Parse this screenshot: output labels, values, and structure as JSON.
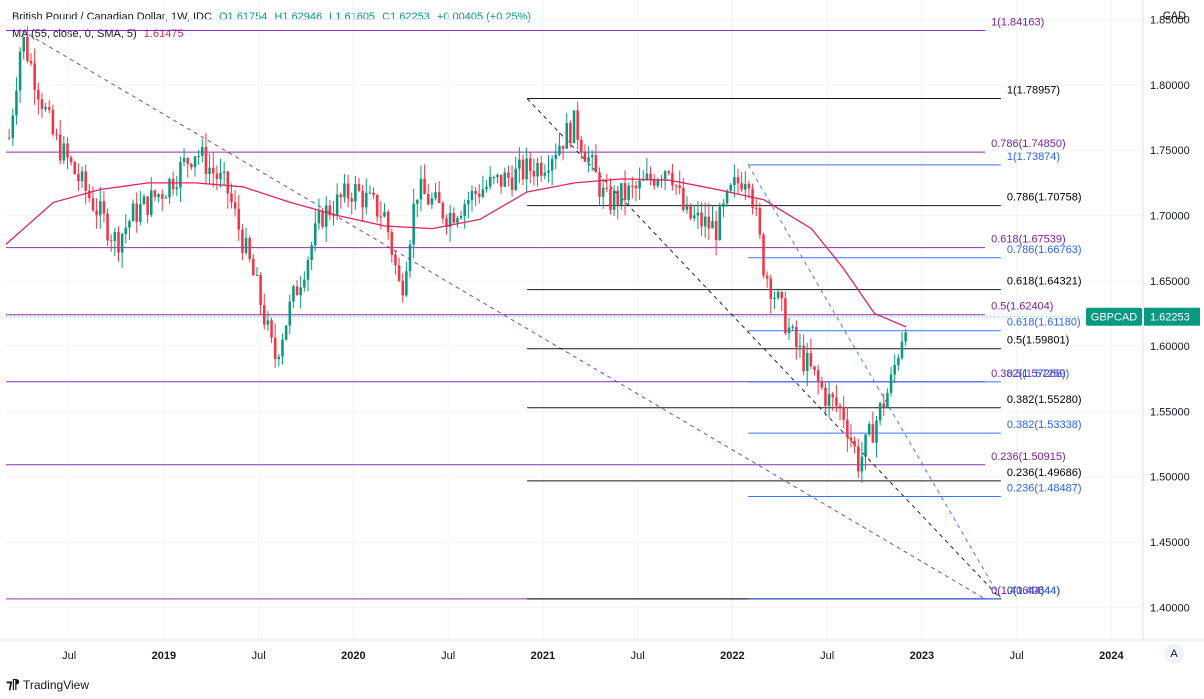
{
  "header": {
    "symbol_line": "British Pound / Canadian Dollar, 1W, IDC",
    "open": "O1.61754",
    "high": "H1.62946",
    "low": "L1.61605",
    "close": "C1.62253",
    "change": "+0.00405 (+0.25%)",
    "ma_label": "MA (55, close, 0, SMA, 5)",
    "ma_value": "1.61475"
  },
  "axis_currency": "CAD",
  "price_tag": {
    "symbol": "GBPCAD",
    "value": "1.62253",
    "price": 1.62253
  },
  "footer": {
    "brand": "TradingView",
    "auto_button": "A"
  },
  "colors": {
    "up": "#089981",
    "down": "#f23645",
    "ma": "#e0245e",
    "fib_purple": "#7b1fa2",
    "fib_black": "#000000",
    "fib_blue": "#2962ff"
  },
  "chart_data": {
    "type": "candlestick",
    "ylim": [
      1.375,
      1.865
    ],
    "y_ticks": [
      1.4,
      1.45,
      1.5,
      1.55,
      1.6,
      1.65,
      1.7,
      1.75,
      1.8,
      1.85
    ],
    "y_tick_labels": [
      "1.40000",
      "1.45000",
      "1.50000",
      "1.55000",
      "1.60000",
      "1.65000",
      "1.70000",
      "1.75000",
      "1.80000",
      "1.85000"
    ],
    "x_range": [
      "2018-03",
      "2024-03"
    ],
    "x_ticks": [
      {
        "label": "Jul",
        "date": "2018-07"
      },
      {
        "label": "2019",
        "date": "2019-01"
      },
      {
        "label": "Jul",
        "date": "2019-07"
      },
      {
        "label": "2020",
        "date": "2020-01"
      },
      {
        "label": "Jul",
        "date": "2020-07"
      },
      {
        "label": "2021",
        "date": "2021-01"
      },
      {
        "label": "Jul",
        "date": "2021-07"
      },
      {
        "label": "2022",
        "date": "2022-01"
      },
      {
        "label": "Jul",
        "date": "2022-07"
      },
      {
        "label": "2023",
        "date": "2023-01"
      },
      {
        "label": "Jul",
        "date": "2023-07"
      },
      {
        "label": "2024",
        "date": "2024-01"
      }
    ],
    "price_anchors": [
      [
        "2018-03",
        1.74
      ],
      [
        "2018-04",
        1.838
      ],
      [
        "2018-06",
        1.76
      ],
      [
        "2018-08",
        1.72
      ],
      [
        "2018-10",
        1.68
      ],
      [
        "2018-11",
        1.7
      ],
      [
        "2019-01",
        1.72
      ],
      [
        "2019-03",
        1.75
      ],
      [
        "2019-05",
        1.72
      ],
      [
        "2019-07",
        1.64
      ],
      [
        "2019-08",
        1.59
      ],
      [
        "2019-09",
        1.63
      ],
      [
        "2019-11",
        1.7
      ],
      [
        "2020-01",
        1.72
      ],
      [
        "2020-03",
        1.7
      ],
      [
        "2020-04",
        1.64
      ],
      [
        "2020-05",
        1.72
      ],
      [
        "2020-07",
        1.7
      ],
      [
        "2020-09",
        1.72
      ],
      [
        "2020-11",
        1.73
      ],
      [
        "2021-01",
        1.74
      ],
      [
        "2021-03",
        1.77
      ],
      [
        "2021-05",
        1.71
      ],
      [
        "2021-07",
        1.72
      ],
      [
        "2021-09",
        1.74
      ],
      [
        "2021-10",
        1.7
      ],
      [
        "2021-12",
        1.69
      ],
      [
        "2022-01",
        1.72
      ],
      [
        "2022-02",
        1.735
      ],
      [
        "2022-03",
        1.66
      ],
      [
        "2022-05",
        1.6
      ],
      [
        "2022-07",
        1.56
      ],
      [
        "2022-08",
        1.55
      ],
      [
        "2022-09",
        1.51
      ],
      [
        "2022-10",
        1.54
      ],
      [
        "2022-11",
        1.57
      ],
      [
        "2022-12",
        1.62253
      ]
    ],
    "ma_series": {
      "name": "MA (55, close, 0, SMA, 5)",
      "points": [
        [
          "2018-03",
          1.678
        ],
        [
          "2018-06",
          1.71
        ],
        [
          "2018-09",
          1.72
        ],
        [
          "2018-12",
          1.725
        ],
        [
          "2019-03",
          1.725
        ],
        [
          "2019-06",
          1.722
        ],
        [
          "2019-09",
          1.71
        ],
        [
          "2019-12",
          1.7
        ],
        [
          "2020-03",
          1.692
        ],
        [
          "2020-06",
          1.69
        ],
        [
          "2020-09",
          1.697
        ],
        [
          "2020-12",
          1.718
        ],
        [
          "2021-03",
          1.725
        ],
        [
          "2021-06",
          1.728
        ],
        [
          "2021-09",
          1.727
        ],
        [
          "2021-12",
          1.72
        ],
        [
          "2022-03",
          1.712
        ],
        [
          "2022-06",
          1.69
        ],
        [
          "2022-08",
          1.66
        ],
        [
          "2022-10",
          1.625
        ],
        [
          "2022-12",
          1.61475
        ]
      ]
    },
    "fib_sets": [
      {
        "color": "#7b1fa2",
        "x_start": "2018-03",
        "x_end": "2023-05",
        "levels": [
          {
            "label": "1(1.84163)",
            "price": 1.84163
          },
          {
            "label": "0.786(1.74850)",
            "price": 1.7485
          },
          {
            "label": "0.618(1.67539)",
            "price": 1.67539
          },
          {
            "label": "0.5(1.62404)",
            "price": 1.62404
          },
          {
            "label": "0.382(1.57268)",
            "price": 1.57268
          },
          {
            "label": "0.236(1.50915)",
            "price": 1.50915
          },
          {
            "label": "0(1.40644)",
            "price": 1.40644
          }
        ],
        "trend": [
          [
            "2018-04",
            1.84163
          ],
          [
            "2023-05",
            1.40644
          ]
        ]
      },
      {
        "color": "#000000",
        "x_start": "2020-12",
        "x_end": "2023-06",
        "levels": [
          {
            "label": "1(1.78957)",
            "price": 1.78957
          },
          {
            "label": "0.786(1.70758)",
            "price": 1.70758
          },
          {
            "label": "0.618(1.64321)",
            "price": 1.64321
          },
          {
            "label": "0.5(1.59801)",
            "price": 1.59801
          },
          {
            "label": "0.382(1.55280)",
            "price": 1.5528
          },
          {
            "label": "0.236(1.49686)",
            "price": 1.49686
          },
          {
            "label": "0(1.40644)",
            "price": 1.40644
          }
        ],
        "trend": [
          [
            "2020-12",
            1.78957
          ],
          [
            "2023-06",
            1.40644
          ]
        ]
      },
      {
        "color": "#2962ff",
        "x_start": "2022-02",
        "x_end": "2023-06",
        "levels": [
          {
            "label": "1(1.73874)",
            "price": 1.73874
          },
          {
            "label": "0.786(1.66763)",
            "price": 1.66763
          },
          {
            "label": "0.618(1.61180)",
            "price": 1.6118
          },
          {
            "label": "0.5(1.57259)",
            "price": 1.57259
          },
          {
            "label": "0.382(1.53338)",
            "price": 1.53338
          },
          {
            "label": "0.236(1.48487)",
            "price": 1.48487
          },
          {
            "label": "0(1.40644)",
            "price": 1.40644
          }
        ],
        "trend": [
          [
            "2022-02",
            1.73874
          ],
          [
            "2023-06",
            1.40644
          ]
        ]
      }
    ]
  }
}
